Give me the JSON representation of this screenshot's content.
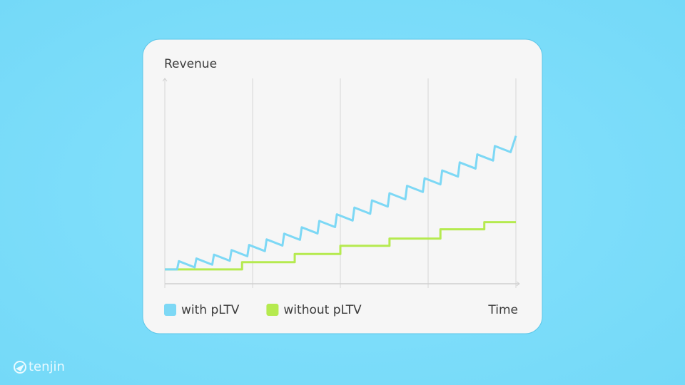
{
  "brand": "tenjin",
  "chart_data": {
    "type": "line",
    "y_label": "Revenue",
    "x_label": "Time",
    "xlim": [
      0,
      100
    ],
    "ylim": [
      0,
      100
    ],
    "x_gridlines": [
      0,
      25,
      50,
      75,
      100
    ],
    "series": [
      {
        "name": "with pLTV",
        "color": "#7dd8f5",
        "x": [
          0,
          3.5,
          4,
          8.5,
          9,
          13.5,
          14,
          18.5,
          19,
          23.5,
          24,
          28.5,
          29,
          33.5,
          34,
          38.5,
          39,
          43.5,
          44,
          48.5,
          49,
          53.5,
          54,
          58.5,
          59,
          63.5,
          64,
          68.5,
          69,
          73.5,
          74,
          78.5,
          79,
          83.5,
          84,
          88.5,
          89,
          93.5,
          94,
          98.5,
          100
        ],
        "values": [
          7,
          7,
          11,
          8,
          12.3,
          9.3,
          14.2,
          11.2,
          16.4,
          13.4,
          18.9,
          15.9,
          21.6,
          18.6,
          24.4,
          21.4,
          27.5,
          24.5,
          30.6,
          27.6,
          33.8,
          30.8,
          37.1,
          34.1,
          40.6,
          37.6,
          44.1,
          41.1,
          47.7,
          44.7,
          51.4,
          48.4,
          55.2,
          52.2,
          59.1,
          56.1,
          63,
          60,
          67.1,
          64.1,
          72
        ]
      },
      {
        "name": "without pLTV",
        "color": "#b5ea4f",
        "x": [
          0,
          22,
          22,
          37,
          37,
          50,
          50,
          64,
          64,
          78.5,
          78.5,
          91,
          91,
          100
        ],
        "values": [
          7,
          7,
          10.5,
          10.5,
          14.5,
          14.5,
          18.5,
          18.5,
          22,
          22,
          26.5,
          26.5,
          30,
          30
        ]
      }
    ]
  }
}
